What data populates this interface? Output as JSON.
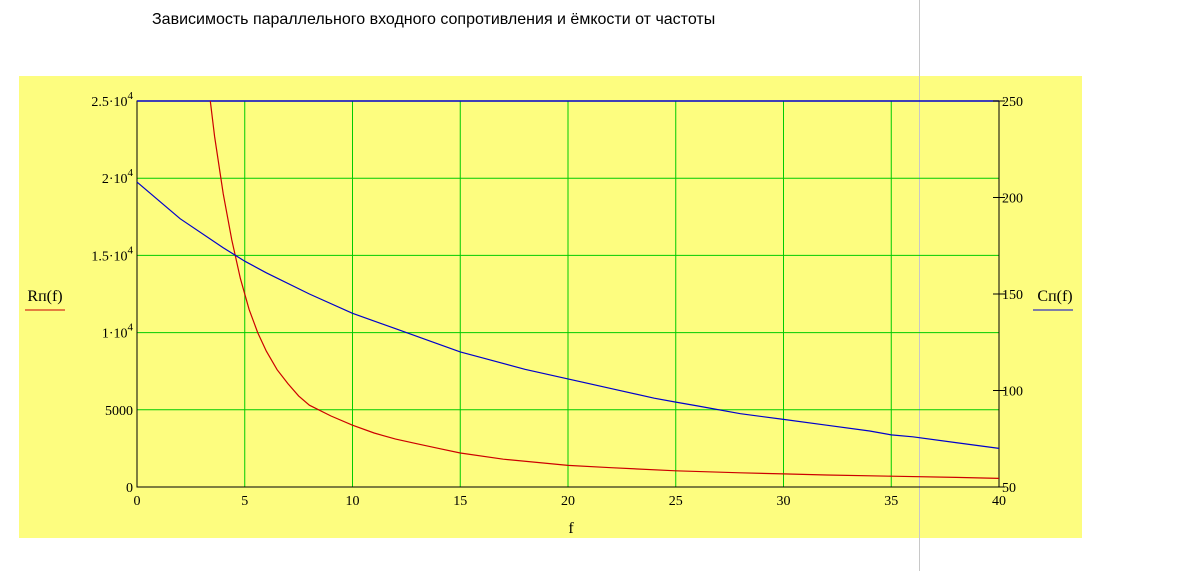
{
  "title": "Зависимость параллельного входного сопротивления и ёмкости от частоты",
  "chart_data": {
    "type": "line",
    "title": "Зависимость параллельного входного сопротивления и ёмкости от частоты",
    "xlabel": "f",
    "xlim": [
      0,
      40
    ],
    "x_ticks": [
      "0",
      "5",
      "10",
      "15",
      "20",
      "25",
      "30",
      "35",
      "40"
    ],
    "x_tick_values": [
      0,
      5,
      10,
      15,
      20,
      25,
      30,
      35,
      40
    ],
    "y_left": {
      "label": "Rп(f)",
      "ylim": [
        0,
        25000
      ],
      "ticks": [
        {
          "value": 0,
          "mant": "0",
          "exp": ""
        },
        {
          "value": 5000,
          "mant": "5000",
          "exp": ""
        },
        {
          "value": 10000,
          "mant": "1·10",
          "exp": "4"
        },
        {
          "value": 15000,
          "mant": "1.5·10",
          "exp": "4"
        },
        {
          "value": 20000,
          "mant": "2·10",
          "exp": "4"
        },
        {
          "value": 25000,
          "mant": "2.5·10",
          "exp": "4"
        }
      ],
      "color": "#cc0000"
    },
    "y_right": {
      "label": "Cп(f)",
      "ylim": [
        50,
        250
      ],
      "ticks": [
        {
          "value": 50,
          "mant": "50"
        },
        {
          "value": 100,
          "mant": "100"
        },
        {
          "value": 150,
          "mant": "150"
        },
        {
          "value": 200,
          "mant": "200"
        },
        {
          "value": 250,
          "mant": "250"
        }
      ],
      "color": "#0000cc"
    },
    "grid": true,
    "grid_color": "#00cc00",
    "series": [
      {
        "name": "Rп(f)",
        "axis": "left",
        "color": "#cc0000",
        "x": [
          3.4,
          3.6,
          4.0,
          4.4,
          4.8,
          5.2,
          5.6,
          6,
          6.5,
          7,
          7.5,
          8,
          9,
          10,
          11,
          12,
          13,
          14,
          15,
          17,
          20,
          22,
          25,
          28,
          30,
          32,
          35,
          38,
          40
        ],
        "values": [
          25000,
          22700,
          19000,
          16000,
          13500,
          11500,
          10000,
          8800,
          7600,
          6700,
          5900,
          5300,
          4600,
          4000,
          3500,
          3100,
          2800,
          2500,
          2200,
          1800,
          1400,
          1250,
          1050,
          920,
          850,
          780,
          700,
          620,
          560
        ]
      },
      {
        "name": "Cп(f)",
        "axis": "right",
        "color": "#0000cc",
        "x": [
          0,
          2,
          4,
          5,
          6,
          8,
          10,
          12,
          14,
          15,
          16,
          18,
          20,
          22,
          24,
          25,
          26,
          28,
          30,
          32,
          34,
          35,
          36,
          38,
          40
        ],
        "values": [
          208,
          189,
          174,
          167,
          161,
          150,
          140,
          132,
          124,
          120,
          117,
          111,
          106,
          101,
          96,
          94,
          92,
          88,
          85,
          82,
          79,
          77,
          76,
          73,
          70
        ]
      }
    ]
  }
}
